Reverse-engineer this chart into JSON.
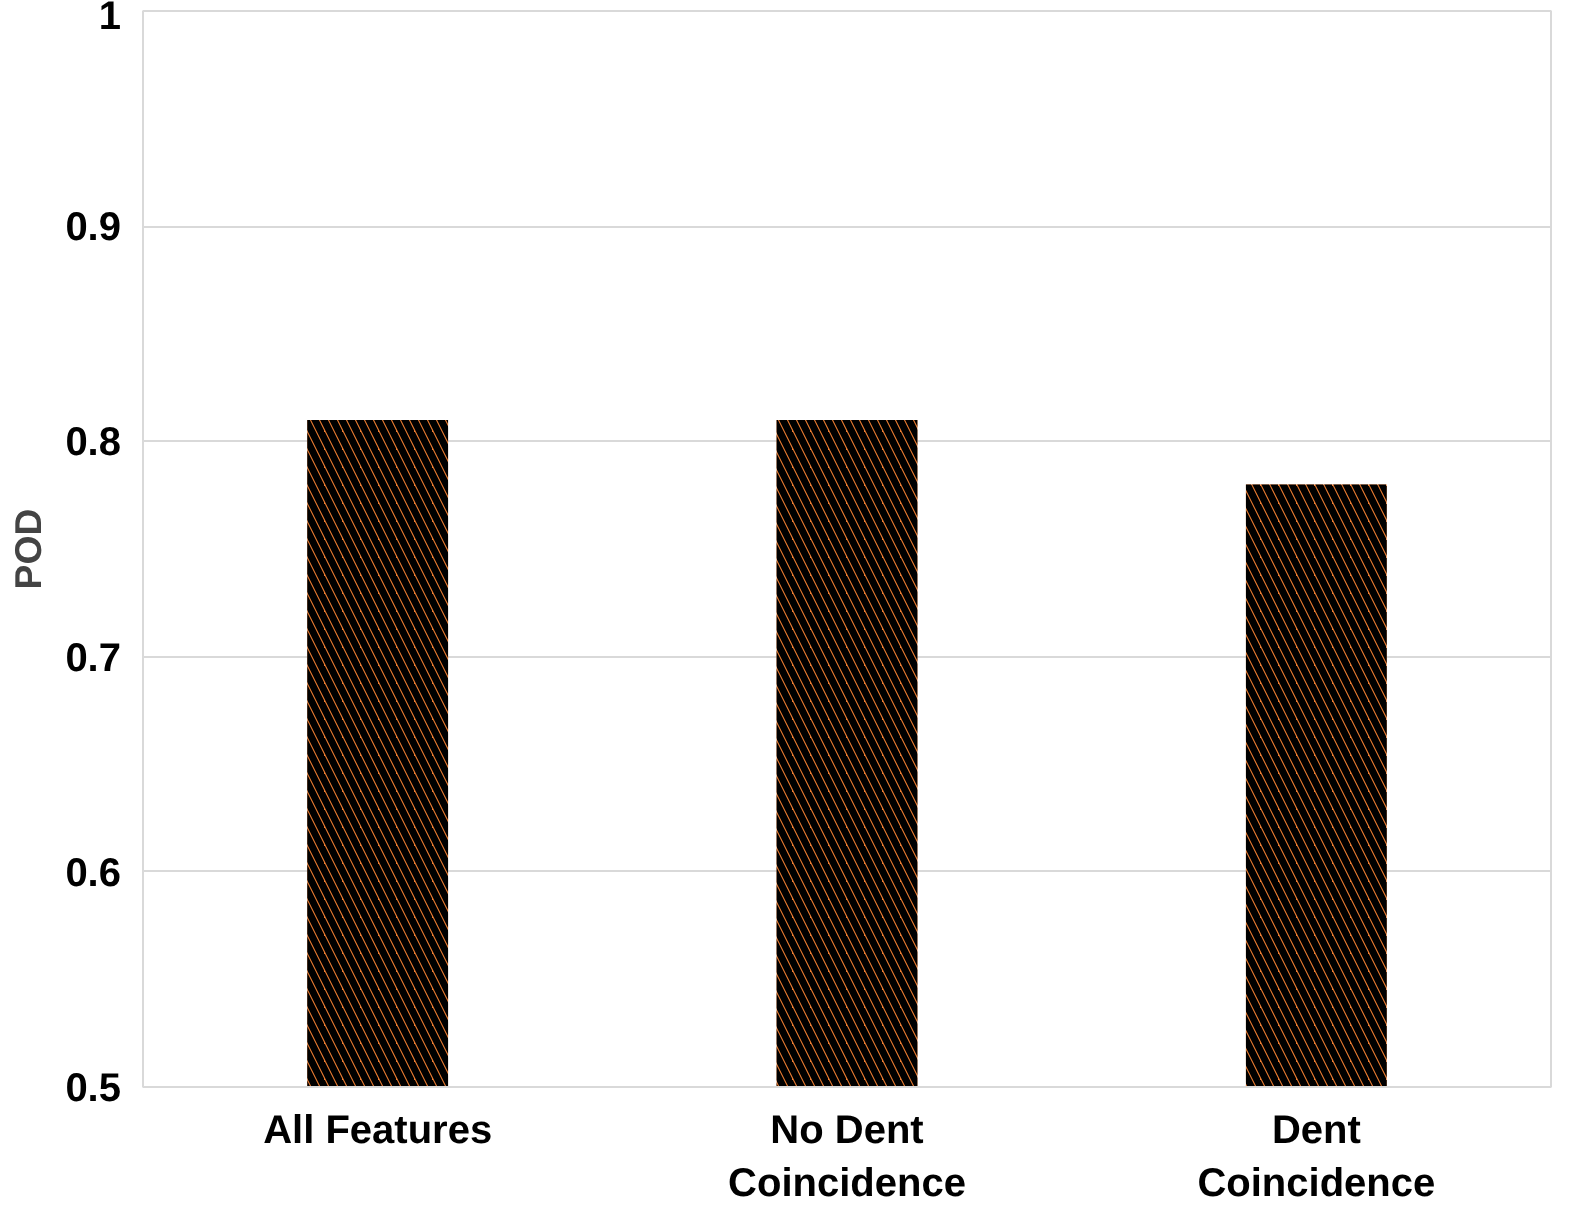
{
  "chart_data": {
    "type": "bar",
    "ylabel": "POD",
    "categories": [
      "All Features",
      "No Dent\nCoincidence",
      "Dent\nCoincidence"
    ],
    "values": [
      0.81,
      0.81,
      0.78
    ],
    "color": "#ed7d31",
    "ylim": [
      0.5,
      1
    ],
    "yticks": [
      0.5,
      0.6,
      0.7,
      0.8,
      0.9,
      1
    ],
    "grid": "y"
  }
}
